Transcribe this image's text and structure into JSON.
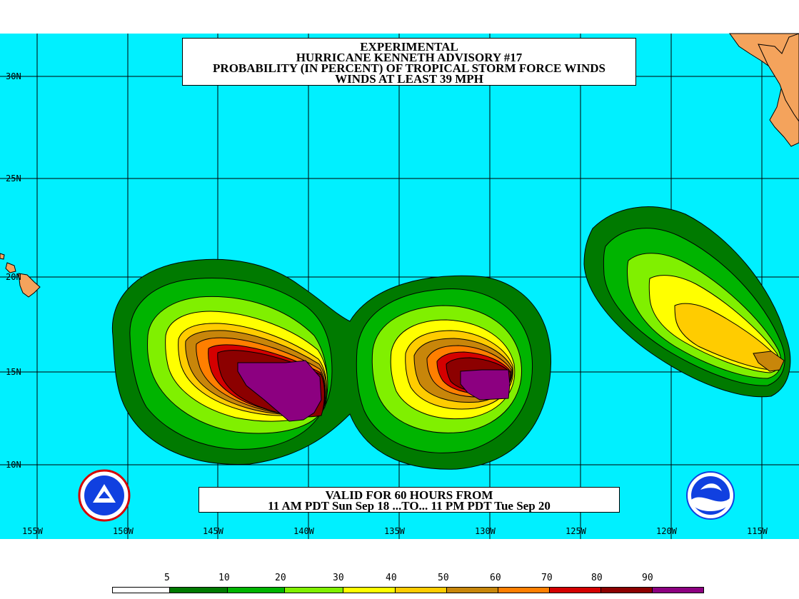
{
  "title_lines": [
    "EXPERIMENTAL",
    "HURRICANE KENNETH ADVISORY #17",
    "PROBABILITY (IN PERCENT) OF TROPICAL STORM FORCE WINDS",
    "WINDS AT LEAST 39 MPH"
  ],
  "valid_lines": [
    "VALID FOR 60 HOURS FROM",
    "11 AM PDT Sun Sep 18 ...TO... 11 PM PDT Tue Sep 20"
  ],
  "lat_labels": [
    "30N",
    "25N",
    "20N",
    "15N",
    "10N"
  ],
  "lon_labels": [
    "155W",
    "150W",
    "145W",
    "140W",
    "135W",
    "130W",
    "125W",
    "120W",
    "115W"
  ],
  "legend": {
    "values": [
      "5",
      "10",
      "20",
      "30",
      "40",
      "50",
      "60",
      "70",
      "80",
      "90"
    ],
    "colors": [
      "#ffffff",
      "#007a00",
      "#00b400",
      "#80f000",
      "#ffff00",
      "#ffcc00",
      "#c8860a",
      "#ff7f00",
      "#d40000",
      "#8c0000",
      "#8c0080"
    ]
  },
  "colors": {
    "ocean": "#00f0ff",
    "land": "#f4a35c"
  },
  "logos": {
    "left": "NWS",
    "right": "NOAA"
  }
}
